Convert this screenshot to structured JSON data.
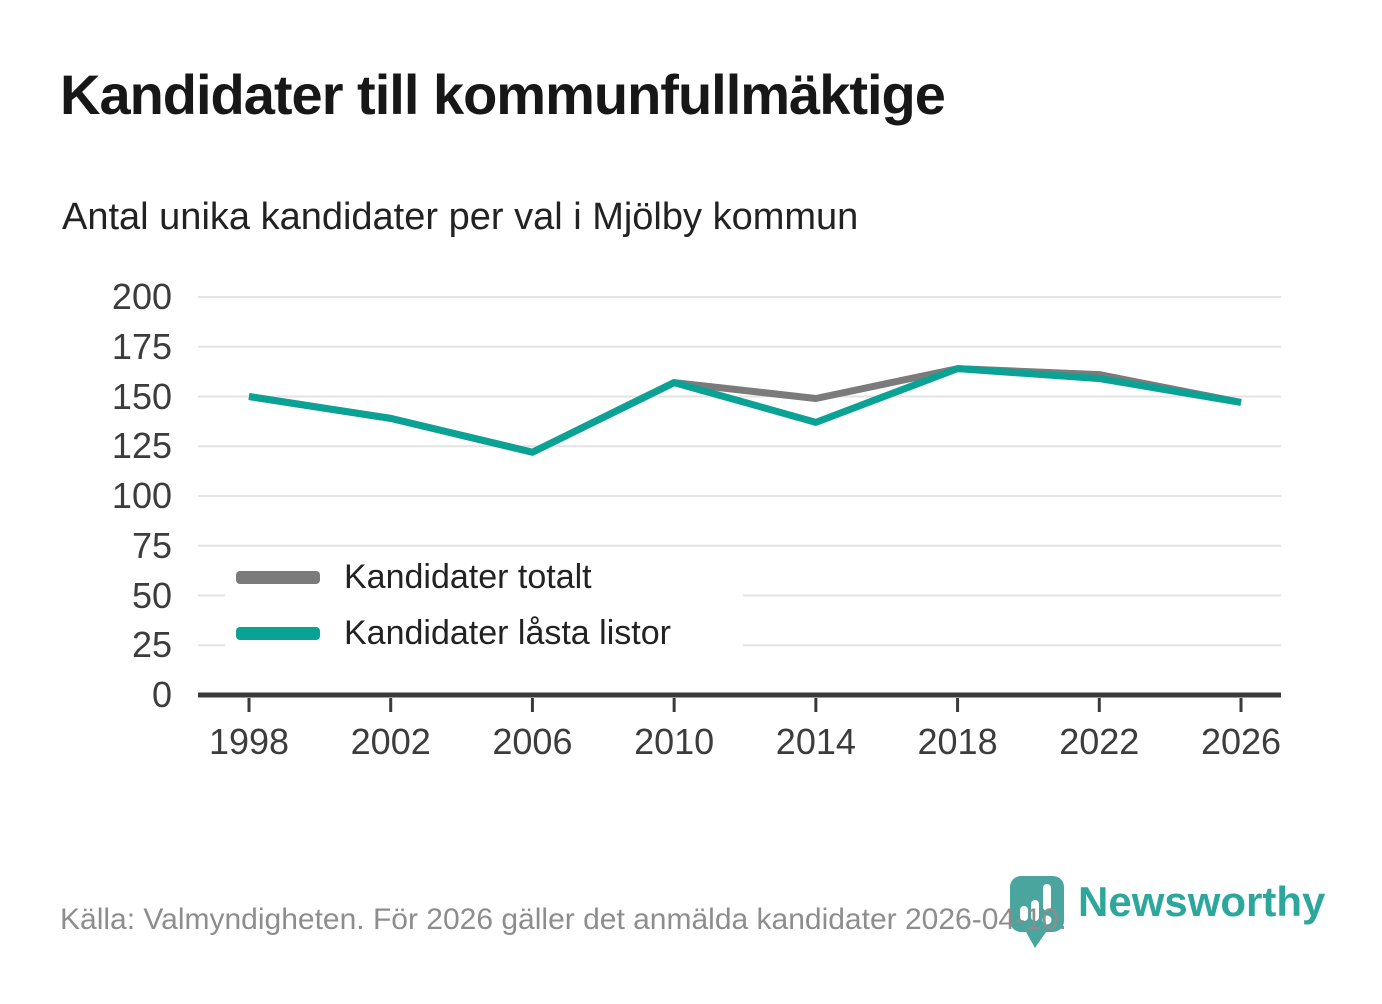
{
  "header": {
    "title": "Kandidater till kommunfullmäktige",
    "subtitle": "Antal unika kandidater per val i Mjölby kommun"
  },
  "footer": {
    "source": "Källa: Valmyndigheten. För 2026 gäller det anmälda kandidater 2026-04-10.",
    "brand": "Newsworthy"
  },
  "colors": {
    "teal": "#0ba296",
    "gray": "#7b7b7b",
    "grid": "#e3e3e3",
    "axis": "#3a3a3a",
    "tick_text": "#3c3c3c",
    "title_text": "#171717",
    "footer_text": "#8d8d8d",
    "logo_pin": "#4aa59e",
    "brand_text": "#2da79c"
  },
  "chart_data": {
    "type": "line",
    "title": "Kandidater till kommunfullmäktige",
    "subtitle": "Antal unika kandidater per val i Mjölby kommun",
    "xlabel": "",
    "ylabel": "",
    "categories": [
      "1998",
      "2002",
      "2006",
      "2010",
      "2014",
      "2018",
      "2022",
      "2026"
    ],
    "series": [
      {
        "name": "Kandidater totalt",
        "color": "#7b7b7b",
        "values": [
          150,
          139,
          122,
          157,
          149,
          164,
          161,
          147
        ]
      },
      {
        "name": "Kandidater låsta listor",
        "color": "#0ba296",
        "values": [
          150,
          139,
          122,
          157,
          137,
          164,
          159,
          147
        ]
      }
    ],
    "yticks": [
      0,
      25,
      50,
      75,
      100,
      125,
      150,
      175,
      200
    ],
    "ylim": [
      0,
      200
    ],
    "grid": "horizontal",
    "legend_position": "inside-left-bottom"
  }
}
